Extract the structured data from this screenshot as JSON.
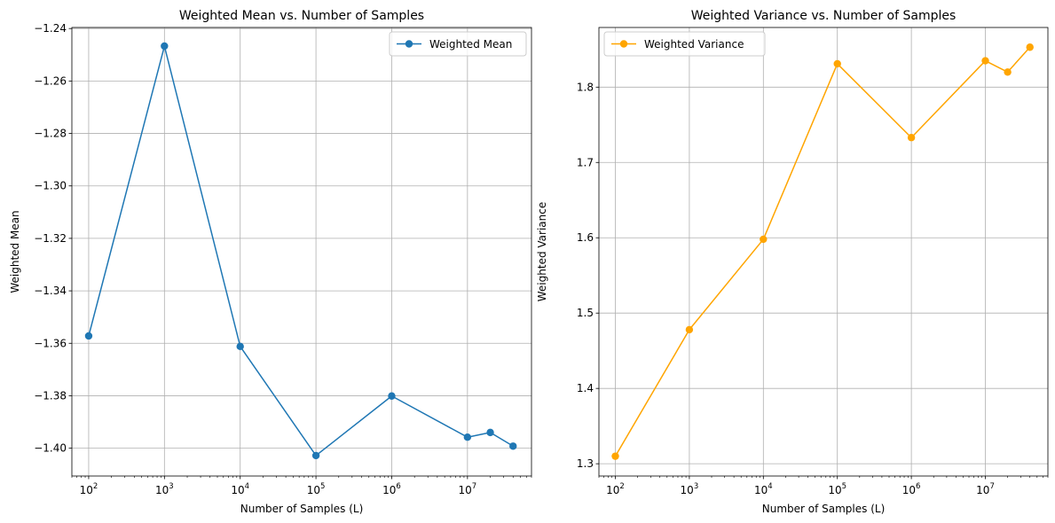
{
  "chart_data": [
    {
      "type": "line",
      "title": "Weighted Mean vs. Number of Samples",
      "xlabel": "Number of Samples (L)",
      "ylabel": "Weighted Mean",
      "xscale": "log",
      "xlim": [
        60,
        70000000
      ],
      "ylim": [
        -1.4106,
        -1.2396
      ],
      "x": [
        100,
        1000,
        10000,
        100000,
        1000000,
        10000000,
        20000000,
        40000000
      ],
      "xticks": [
        {
          "base": "10",
          "exp": "2",
          "value": 100
        },
        {
          "base": "10",
          "exp": "3",
          "value": 1000
        },
        {
          "base": "10",
          "exp": "4",
          "value": 10000
        },
        {
          "base": "10",
          "exp": "5",
          "value": 100000
        },
        {
          "base": "10",
          "exp": "6",
          "value": 1000000
        },
        {
          "base": "10",
          "exp": "7",
          "value": 10000000
        }
      ],
      "yticks": [
        {
          "label": "−1.24",
          "value": -1.24
        },
        {
          "label": "−1.26",
          "value": -1.26
        },
        {
          "label": "−1.28",
          "value": -1.28
        },
        {
          "label": "−1.30",
          "value": -1.3
        },
        {
          "label": "−1.32",
          "value": -1.32
        },
        {
          "label": "−1.34",
          "value": -1.34
        },
        {
          "label": "−1.36",
          "value": -1.36
        },
        {
          "label": "−1.38",
          "value": -1.38
        },
        {
          "label": "−1.40",
          "value": -1.4
        }
      ],
      "grid": true,
      "legend": "upper right",
      "series": [
        {
          "name": "Weighted Mean",
          "color": "#1f77b4",
          "marker": "circle",
          "values": [
            -1.3572,
            -1.2467,
            -1.3612,
            -1.4028,
            -1.3801,
            -1.3958,
            -1.394,
            -1.3992
          ]
        }
      ]
    },
    {
      "type": "line",
      "title": "Weighted Variance vs. Number of Samples",
      "xlabel": "Number of Samples (L)",
      "ylabel": "Weighted Variance",
      "xscale": "log",
      "xlim": [
        60,
        70000000
      ],
      "ylim": [
        1.2837,
        1.8792
      ],
      "x": [
        100,
        1000,
        10000,
        100000,
        1000000,
        10000000,
        20000000,
        40000000
      ],
      "xticks": [
        {
          "base": "10",
          "exp": "2",
          "value": 100
        },
        {
          "base": "10",
          "exp": "3",
          "value": 1000
        },
        {
          "base": "10",
          "exp": "4",
          "value": 10000
        },
        {
          "base": "10",
          "exp": "5",
          "value": 100000
        },
        {
          "base": "10",
          "exp": "6",
          "value": 1000000
        },
        {
          "base": "10",
          "exp": "7",
          "value": 10000000
        }
      ],
      "yticks": [
        {
          "label": "1.3",
          "value": 1.3
        },
        {
          "label": "1.4",
          "value": 1.4
        },
        {
          "label": "1.5",
          "value": 1.5
        },
        {
          "label": "1.6",
          "value": 1.6
        },
        {
          "label": "1.7",
          "value": 1.7
        },
        {
          "label": "1.8",
          "value": 1.8
        }
      ],
      "grid": true,
      "legend": "upper left",
      "series": [
        {
          "name": "Weighted Variance",
          "color": "#ffa500",
          "marker": "circle",
          "values": [
            1.31,
            1.478,
            1.598,
            1.831,
            1.733,
            1.835,
            1.82,
            1.853
          ]
        }
      ]
    }
  ]
}
